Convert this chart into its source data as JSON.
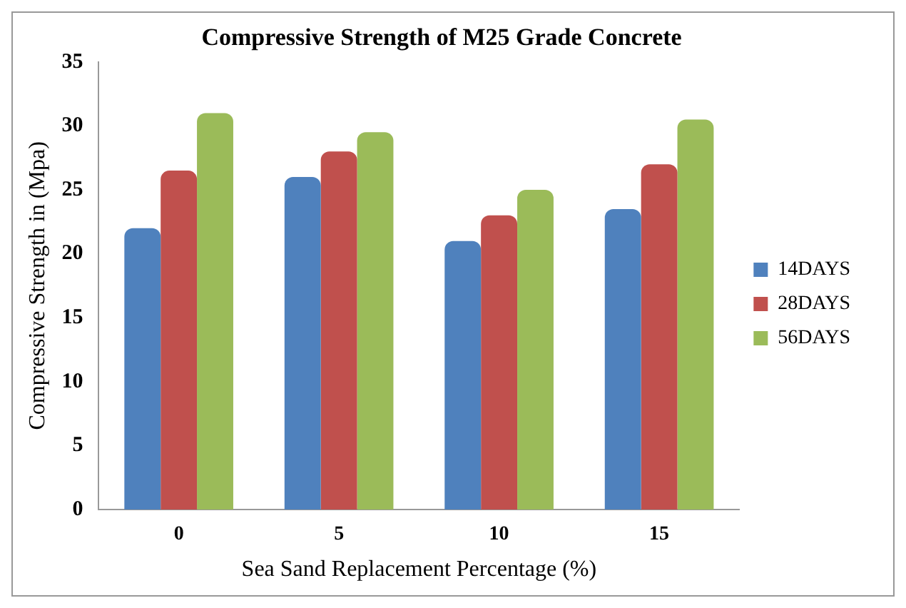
{
  "chart_data": {
    "type": "bar",
    "title": "Compressive Strength of M25 Grade Concrete",
    "xlabel": "Sea Sand Replacement Percentage (%)",
    "ylabel": "Compressive Strength in (Mpa)",
    "categories": [
      "0",
      "5",
      "10",
      "15"
    ],
    "series": [
      {
        "name": "14DAYS",
        "color": "#4f81bd",
        "values": [
          22,
          26,
          21,
          23.5
        ]
      },
      {
        "name": "28DAYS",
        "color": "#c0504d",
        "values": [
          26.5,
          28,
          23,
          27
        ]
      },
      {
        "name": "56DAYS",
        "color": "#9bbb59",
        "values": [
          31,
          29.5,
          25,
          30.5
        ]
      }
    ],
    "ylim": [
      0,
      35
    ],
    "yticks": [
      0,
      5,
      10,
      15,
      20,
      25,
      30,
      35
    ],
    "grid": false,
    "legend": "right"
  }
}
